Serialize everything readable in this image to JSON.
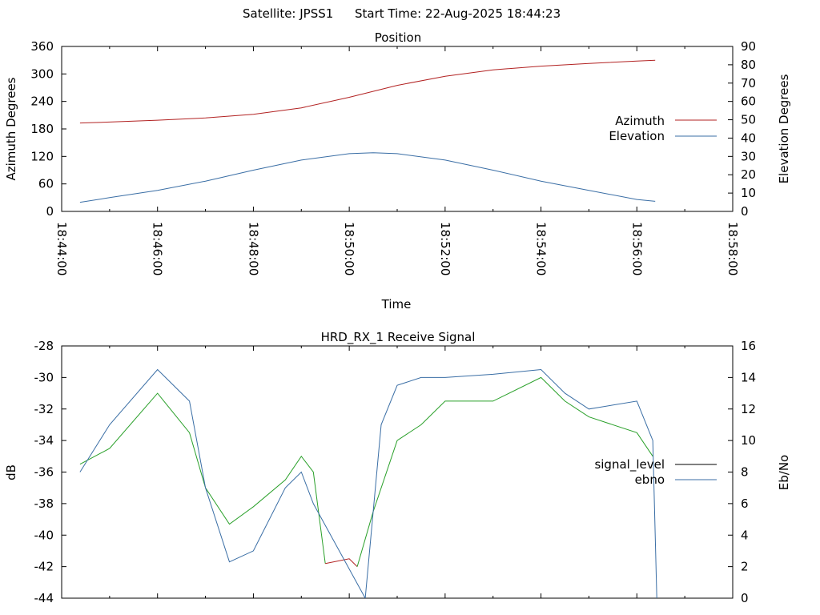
{
  "header": {
    "satellite": "Satellite: JPSS1",
    "start_time": "Start Time: 22-Aug-2025 18:44:23"
  },
  "colors": {
    "azimuth": "#b22222",
    "elevation": "#3a6ea5",
    "signal_level": "#2aa02a",
    "signal_level_low": "#b22222",
    "signal_legend": "#000000",
    "ebno": "#3a6ea5"
  },
  "chart_data": [
    {
      "type": "line",
      "title": "Position",
      "xlabel": "Time",
      "ylabel": "Azimuth Degrees",
      "y2label": "Elevation Degrees",
      "xticks": [
        "18:44:00",
        "18:46:00",
        "18:48:00",
        "18:50:00",
        "18:52:00",
        "18:54:00",
        "18:56:00",
        "18:58:00"
      ],
      "xlim": [
        "18:44:00",
        "18:58:00"
      ],
      "ylim": [
        0,
        360
      ],
      "yticks": [
        0,
        60,
        120,
        180,
        240,
        300,
        360
      ],
      "y2lim": [
        0,
        90
      ],
      "y2ticks": [
        0,
        10,
        20,
        30,
        40,
        50,
        60,
        70,
        80,
        90
      ],
      "legend_position": "right",
      "grid": false,
      "series": [
        {
          "name": "Azimuth",
          "axis": "y",
          "x": [
            "18:44:23",
            "18:45:00",
            "18:46:00",
            "18:47:00",
            "18:48:00",
            "18:49:00",
            "18:50:00",
            "18:51:00",
            "18:52:00",
            "18:53:00",
            "18:54:00",
            "18:55:00",
            "18:56:00",
            "18:56:23"
          ],
          "values": [
            193,
            195,
            199,
            204,
            212,
            226,
            249,
            275,
            295,
            309,
            317,
            323,
            328,
            330
          ]
        },
        {
          "name": "Elevation",
          "axis": "y2",
          "x": [
            "18:44:23",
            "18:45:00",
            "18:46:00",
            "18:47:00",
            "18:48:00",
            "18:49:00",
            "18:50:00",
            "18:50:30",
            "18:51:00",
            "18:52:00",
            "18:53:00",
            "18:54:00",
            "18:55:00",
            "18:56:00",
            "18:56:23"
          ],
          "values": [
            5,
            7.5,
            11.5,
            16.5,
            22.5,
            28,
            31.5,
            32,
            31.5,
            28,
            22.5,
            16.5,
            11.5,
            6.5,
            5.5
          ]
        }
      ]
    },
    {
      "type": "line",
      "title": "HRD_RX_1 Receive Signal",
      "xlabel": "",
      "ylabel": "dB",
      "y2label": "Eb/No",
      "xlim": [
        "18:44:00",
        "18:58:00"
      ],
      "ylim": [
        -44,
        -28
      ],
      "yticks": [
        -44,
        -42,
        -40,
        -38,
        -36,
        -34,
        -32,
        -30,
        -28
      ],
      "y2lim": [
        0,
        16
      ],
      "y2ticks": [
        0,
        2,
        4,
        6,
        8,
        10,
        12,
        14,
        16
      ],
      "legend_position": "right",
      "grid": false,
      "series": [
        {
          "name": "signal_level",
          "axis": "y",
          "x": [
            "18:44:23",
            "18:45:00",
            "18:46:00",
            "18:46:40",
            "18:47:00",
            "18:47:30",
            "18:48:00",
            "18:48:40",
            "18:49:00",
            "18:49:15",
            "18:49:30",
            "18:50:00",
            "18:50:10",
            "18:50:30",
            "18:51:00",
            "18:51:30",
            "18:52:00",
            "18:53:00",
            "18:54:00",
            "18:54:30",
            "18:55:00",
            "18:56:00",
            "18:56:20"
          ],
          "values": [
            -35.5,
            -34.5,
            -31.0,
            -33.5,
            -37.0,
            -39.3,
            -38.2,
            -36.5,
            -35.0,
            -36.0,
            -41.8,
            -41.5,
            -42.0,
            -38.5,
            -34.0,
            -33.0,
            -31.5,
            -31.5,
            -30.0,
            -31.5,
            -32.5,
            -33.5,
            -35.0
          ]
        },
        {
          "name": "ebno",
          "axis": "y2",
          "x": [
            "18:44:23",
            "18:45:00",
            "18:46:00",
            "18:46:40",
            "18:47:00",
            "18:47:30",
            "18:48:00",
            "18:48:40",
            "18:49:00",
            "18:49:15",
            "18:50:20",
            "18:50:40",
            "18:51:00",
            "18:51:30",
            "18:52:00",
            "18:53:00",
            "18:54:00",
            "18:54:30",
            "18:55:00",
            "18:56:00",
            "18:56:20",
            "18:56:25"
          ],
          "values": [
            8.0,
            11.0,
            14.5,
            12.5,
            7.0,
            2.3,
            3.0,
            7.0,
            8.0,
            6.0,
            0,
            11.0,
            13.5,
            14.0,
            14.0,
            14.2,
            14.5,
            13.0,
            12.0,
            12.5,
            10.0,
            0
          ]
        }
      ]
    }
  ]
}
